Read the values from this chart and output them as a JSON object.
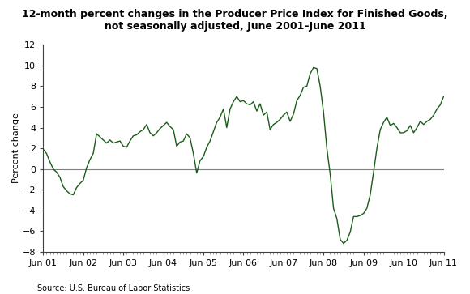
{
  "title": "12-month percent changes in the Producer Price Index for Finished Goods,\nnot seasonally adjusted, June 2001–June 2011",
  "ylabel": "Percent change",
  "source": "Source: U.S. Bureau of Labor Statistics",
  "line_color": "#1a5c1a",
  "background_color": "#ffffff",
  "ylim": [
    -8,
    12
  ],
  "yticks": [
    -8,
    -6,
    -4,
    -2,
    0,
    2,
    4,
    6,
    8,
    10,
    12
  ],
  "xtick_labels": [
    "Jun 01",
    "Jun 02",
    "Jun 03",
    "Jun 04",
    "Jun 05",
    "Jun 06",
    "Jun 07",
    "Jun 08",
    "Jun 09",
    "Jun 10",
    "Jun 11"
  ],
  "values": [
    1.9,
    1.5,
    0.7,
    0.0,
    -0.3,
    -0.8,
    -1.7,
    -2.1,
    -2.4,
    -2.5,
    -1.8,
    -1.4,
    -1.1,
    0.1,
    0.9,
    1.5,
    3.4,
    3.1,
    2.8,
    2.5,
    2.8,
    2.5,
    2.6,
    2.7,
    2.2,
    2.1,
    2.7,
    3.2,
    3.3,
    3.6,
    3.8,
    4.3,
    3.5,
    3.2,
    3.5,
    3.9,
    4.2,
    4.5,
    4.1,
    3.8,
    2.2,
    2.6,
    2.7,
    3.4,
    3.0,
    1.5,
    -0.4,
    0.8,
    1.2,
    2.1,
    2.7,
    3.6,
    4.5,
    5.0,
    5.8,
    4.0,
    5.8,
    6.5,
    7.0,
    6.5,
    6.6,
    6.3,
    6.2,
    6.5,
    5.6,
    6.3,
    5.2,
    5.5,
    3.8,
    4.3,
    4.5,
    4.8,
    5.2,
    5.5,
    4.6,
    5.3,
    6.6,
    7.1,
    7.9,
    8.0,
    9.2,
    9.8,
    9.7,
    8.0,
    5.5,
    2.0,
    -0.5,
    -3.8,
    -4.8,
    -6.8,
    -7.2,
    -6.9,
    -6.1,
    -4.6,
    -4.6,
    -4.5,
    -4.3,
    -3.8,
    -2.5,
    -0.3,
    2.0,
    3.8,
    4.5,
    5.0,
    4.2,
    4.4,
    4.0,
    3.5,
    3.5,
    3.7,
    4.2,
    3.5,
    4.0,
    4.6,
    4.3,
    4.6,
    4.8,
    5.2,
    5.8,
    6.2,
    7.0
  ]
}
